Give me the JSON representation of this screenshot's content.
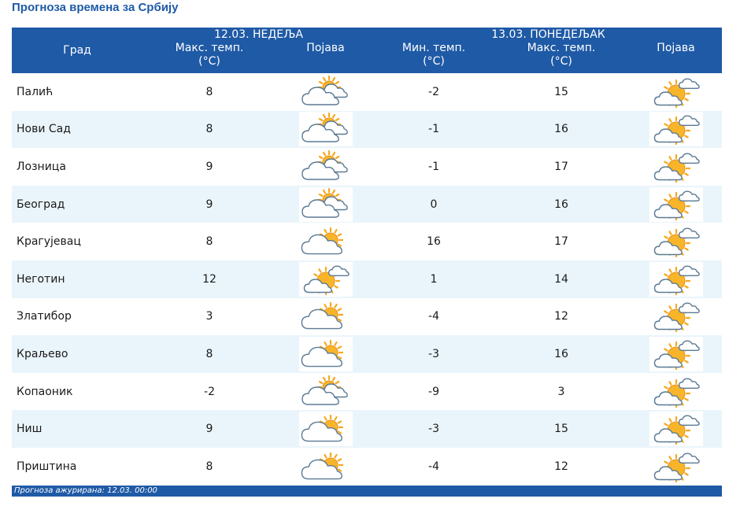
{
  "title": "Прогноза времена за Србију",
  "header": {
    "city": "Град",
    "day1": {
      "date": "12.03. НЕДЕЉА",
      "max_line1": "Макс. темп.",
      "max_line2": "(°C)",
      "phenomenon": "Појава"
    },
    "day2": {
      "date": "13.03. ПОНЕДЕЉАК",
      "min_line1": "Мин. темп.",
      "min_line2": "(°C)",
      "max_line1": "Макс. темп.",
      "max_line2": "(°C)",
      "phenomenon": "Појава"
    }
  },
  "rows": [
    {
      "city": "Палић",
      "d1_max": "8",
      "d1_icon": "sun-behind-clouds-icon",
      "d2_min": "-2",
      "d2_max": "15",
      "d2_icon": "mostly-sunny-icon"
    },
    {
      "city": "Нови Сад",
      "d1_max": "8",
      "d1_icon": "sun-behind-clouds-icon",
      "d2_min": "-1",
      "d2_max": "16",
      "d2_icon": "mostly-sunny-icon"
    },
    {
      "city": "Лозница",
      "d1_max": "9",
      "d1_icon": "sun-behind-clouds-icon",
      "d2_min": "-1",
      "d2_max": "17",
      "d2_icon": "mostly-sunny-icon"
    },
    {
      "city": "Београд",
      "d1_max": "9",
      "d1_icon": "sun-behind-clouds-icon",
      "d2_min": "0",
      "d2_max": "16",
      "d2_icon": "mostly-sunny-icon"
    },
    {
      "city": "Крагујевац",
      "d1_max": "8",
      "d1_icon": "partly-cloudy-icon",
      "d2_min": "16",
      "d2_max": "17",
      "d2_icon": "mostly-sunny-icon"
    },
    {
      "city": "Неготин",
      "d1_max": "12",
      "d1_icon": "mostly-sunny-icon",
      "d2_min": "1",
      "d2_max": "14",
      "d2_icon": "mostly-sunny-icon"
    },
    {
      "city": "Златибор",
      "d1_max": "3",
      "d1_icon": "partly-cloudy-icon",
      "d2_min": "-4",
      "d2_max": "12",
      "d2_icon": "mostly-sunny-icon"
    },
    {
      "city": "Краљево",
      "d1_max": "8",
      "d1_icon": "partly-cloudy-icon",
      "d2_min": "-3",
      "d2_max": "16",
      "d2_icon": "mostly-sunny-icon"
    },
    {
      "city": "Копаоник",
      "d1_max": "-2",
      "d1_icon": "sun-behind-clouds-icon",
      "d2_min": "-9",
      "d2_max": "3",
      "d2_icon": "mostly-sunny-icon"
    },
    {
      "city": "Ниш",
      "d1_max": "9",
      "d1_icon": "partly-cloudy-icon",
      "d2_min": "-3",
      "d2_max": "15",
      "d2_icon": "mostly-sunny-icon"
    },
    {
      "city": "Приштина",
      "d1_max": "8",
      "d1_icon": "partly-cloudy-icon",
      "d2_min": "-4",
      "d2_max": "12",
      "d2_icon": "mostly-sunny-icon"
    }
  ],
  "footer": "Прогноза ажурирана:  12.03. 00:00",
  "colors": {
    "header_bg": "#1f5aa6",
    "title": "#1f5aa6",
    "row_alt": "#eaf5fb",
    "sun": "#f7a81b",
    "cloud_stroke": "#5b7a95"
  }
}
